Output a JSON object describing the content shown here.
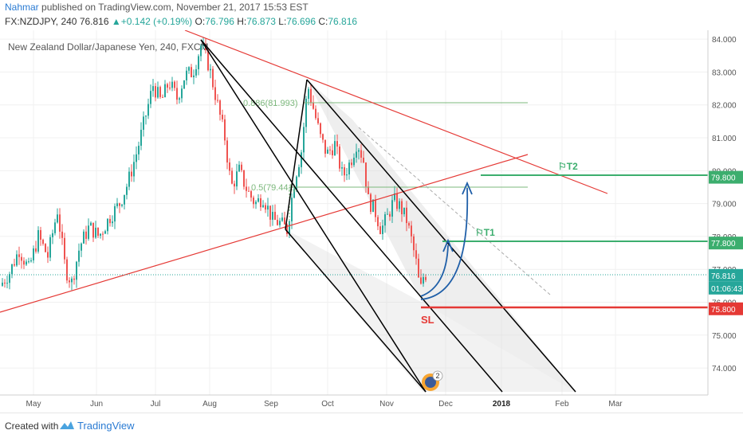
{
  "header": {
    "author": "Nahmar",
    "published": " published on TradingView.com, November 21, 2017 15:53 EST",
    "symbol": "FX:NZDJPY, 240",
    "last": "76.816",
    "change": "+0.142 (+0.19%)",
    "open_label": "O:",
    "open": "76.796",
    "high_label": "H:",
    "high": "76.873",
    "low_label": "L:",
    "low": "76.696",
    "close_label": "C:",
    "close": "76.816"
  },
  "footer": {
    "created": "Created with",
    "brand": "TradingView"
  },
  "colors": {
    "up": "#26a69a",
    "down": "#ef5350",
    "trend": "#e53935",
    "fib": "#7cb87c",
    "target": "#3cae6e",
    "arrow": "#1f5fa8",
    "channel": "#000000"
  },
  "chart_data": {
    "type": "candlestick",
    "title": "New Zealand Dollar/Japanese Yen, 240, FXCM",
    "ylim": [
      73.3,
      84.1
    ],
    "y_ticks": [
      "84.000",
      "83.000",
      "82.000",
      "81.000",
      "80.000",
      "79.000",
      "78.000",
      "77.000",
      "76.000",
      "75.000",
      "74.000"
    ],
    "x_ticks": [
      "May",
      "Jun",
      "Jul",
      "Aug",
      "Sep",
      "Oct",
      "Nov",
      "Dec",
      "2018",
      "Feb",
      "Mar"
    ],
    "price_path": [
      [
        0,
        76.5
      ],
      [
        12,
        76.9
      ],
      [
        24,
        77.6
      ],
      [
        36,
        77.0
      ],
      [
        48,
        78.0
      ],
      [
        60,
        77.4
      ],
      [
        72,
        78.8
      ],
      [
        82,
        77.0
      ],
      [
        90,
        76.6
      ],
      [
        100,
        77.7
      ],
      [
        112,
        78.3
      ],
      [
        124,
        78.0
      ],
      [
        138,
        78.6
      ],
      [
        150,
        79.0
      ],
      [
        160,
        79.6
      ],
      [
        172,
        80.6
      ],
      [
        182,
        81.6
      ],
      [
        192,
        82.6
      ],
      [
        202,
        82.1
      ],
      [
        212,
        82.7
      ],
      [
        222,
        82.2
      ],
      [
        232,
        82.9
      ],
      [
        242,
        83.0
      ],
      [
        252,
        83.8
      ],
      [
        262,
        83.2
      ],
      [
        272,
        82.1
      ],
      [
        282,
        81.0
      ],
      [
        290,
        79.5
      ],
      [
        300,
        80.0
      ],
      [
        310,
        79.4
      ],
      [
        320,
        79.0
      ],
      [
        330,
        79.2
      ],
      [
        342,
        78.5
      ],
      [
        352,
        78.4
      ],
      [
        360,
        78.2
      ],
      [
        370,
        79.8
      ],
      [
        378,
        80.6
      ],
      [
        386,
        82.6
      ],
      [
        394,
        81.8
      ],
      [
        402,
        81.0
      ],
      [
        410,
        80.5
      ],
      [
        420,
        80.8
      ],
      [
        430,
        79.8
      ],
      [
        440,
        80.3
      ],
      [
        448,
        80.9
      ],
      [
        456,
        80.3
      ],
      [
        462,
        79.1
      ],
      [
        470,
        78.8
      ],
      [
        478,
        78.2
      ],
      [
        486,
        78.6
      ],
      [
        494,
        79.1
      ],
      [
        502,
        78.9
      ],
      [
        510,
        78.5
      ],
      [
        516,
        77.9
      ],
      [
        522,
        77.2
      ],
      [
        527,
        76.3
      ],
      [
        532,
        76.9
      ],
      [
        536,
        76.8
      ]
    ],
    "annotations": [
      {
        "label": "0.886(81.993)",
        "value": 81.993
      },
      {
        "label": "0.5(79.441)",
        "value": 79.441
      },
      {
        "label": "T2",
        "value": 79.8
      },
      {
        "label": "T1",
        "value": 77.8
      },
      {
        "label": "SL",
        "value": 75.8
      }
    ],
    "price_labels": [
      {
        "text": "79.800",
        "value": 79.8,
        "color": "#3cae6e"
      },
      {
        "text": "77.800",
        "value": 77.8,
        "color": "#3cae6e"
      },
      {
        "text": "76.816",
        "value": 76.816,
        "color": "#26a69a"
      },
      {
        "text": "01:06:43",
        "value": 76.55,
        "color": "#26a69a"
      },
      {
        "text": "75.800",
        "value": 75.8,
        "color": "#e53935"
      }
    ],
    "badge": "2",
    "grid": true,
    "legend": "none"
  }
}
